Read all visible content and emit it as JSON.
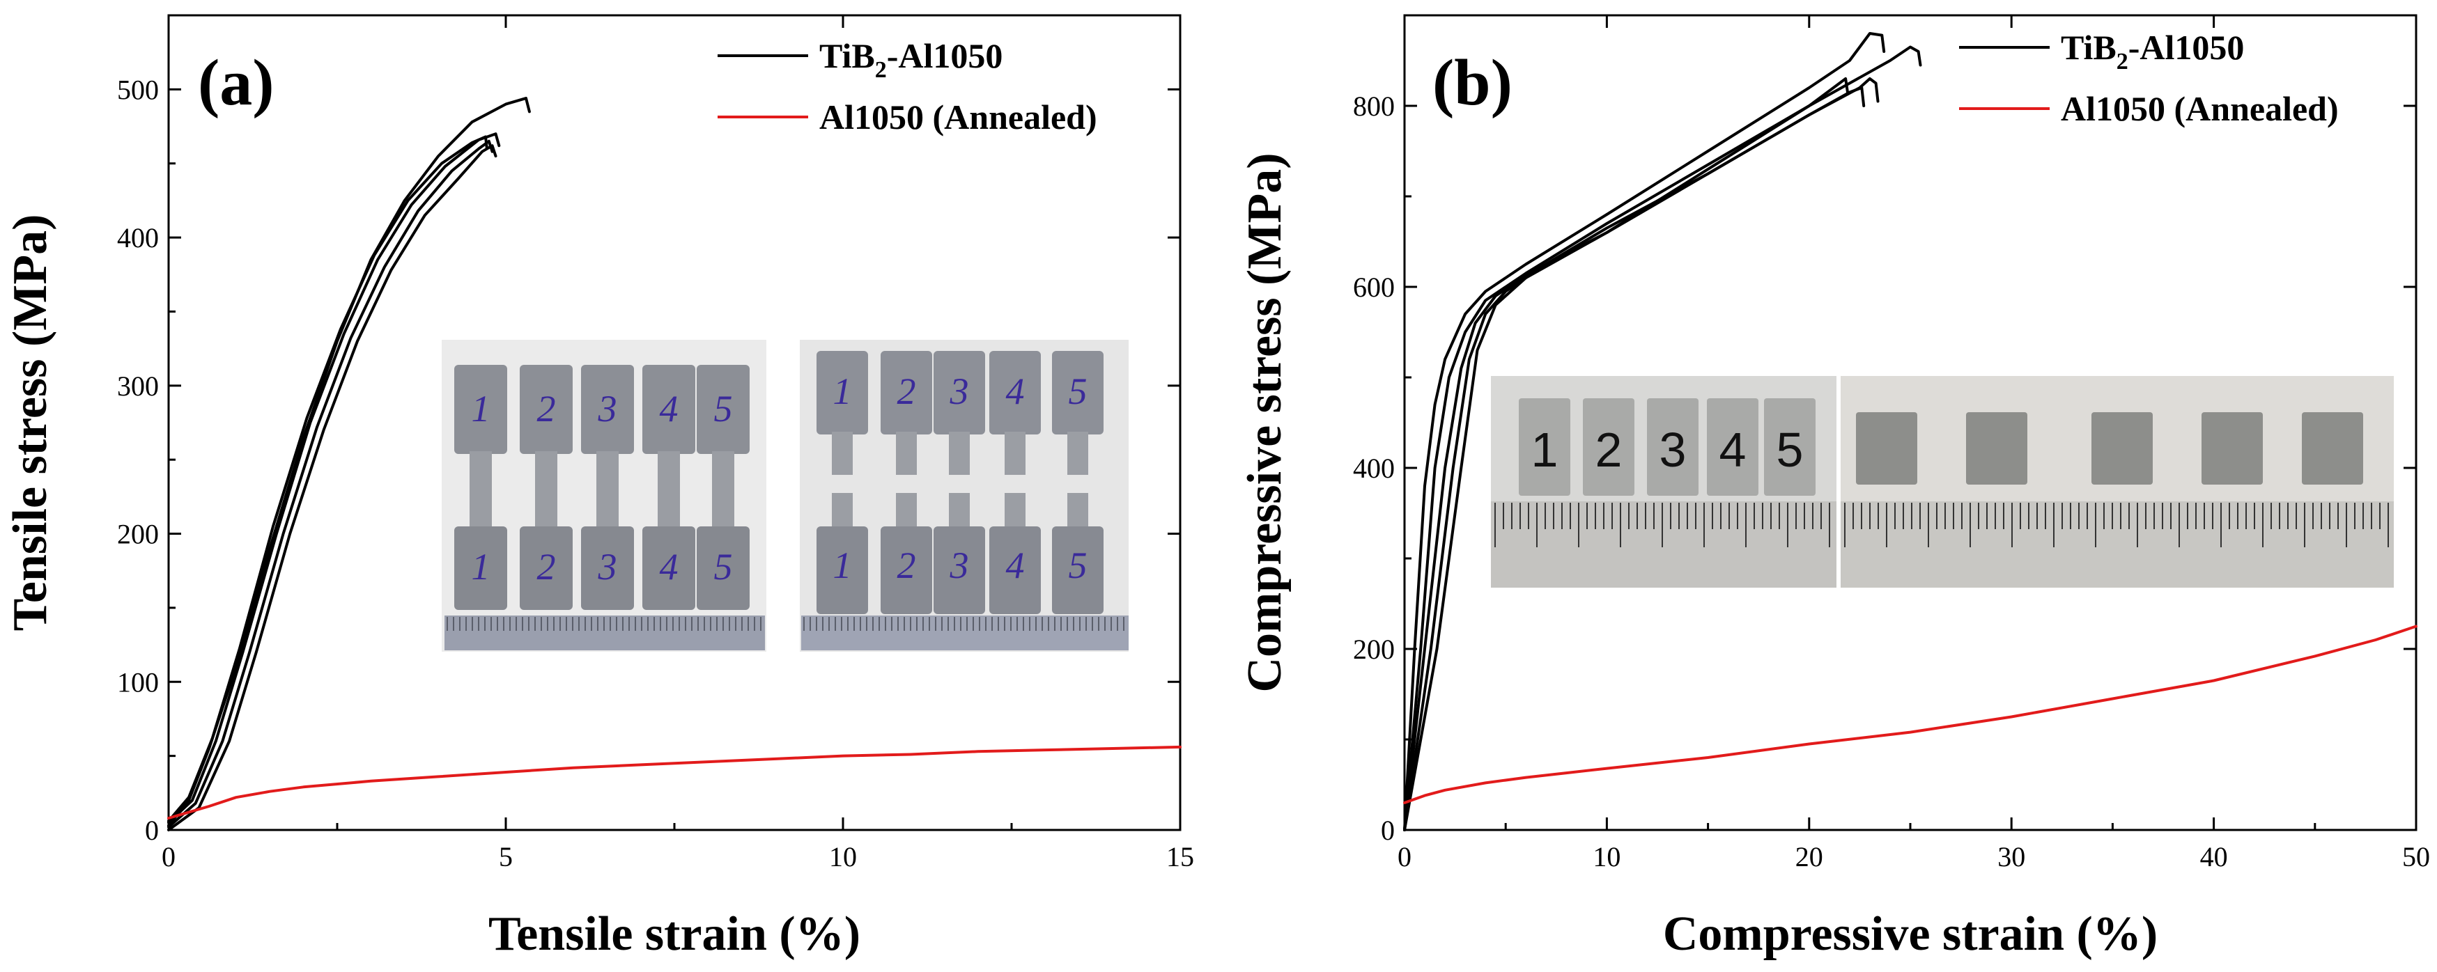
{
  "colors": {
    "tib2": "#000000",
    "annealed": "#e21b1b",
    "specimen_ink": "#3a2a9a"
  },
  "chart_data": [
    {
      "type": "line",
      "panel_label": "(a)",
      "xlabel": "Tensile strain (%)",
      "ylabel": "Tensile stress (MPa)",
      "xlim": [
        0,
        15
      ],
      "ylim": [
        0,
        550
      ],
      "xticks": [
        0,
        5,
        10,
        15
      ],
      "yticks": [
        0,
        100,
        200,
        300,
        400,
        500
      ],
      "xtick_labels": [
        "0",
        "5",
        "10",
        "15"
      ],
      "ytick_labels": [
        "0",
        "100",
        "200",
        "300",
        "400",
        "500"
      ],
      "legend": [
        {
          "label_main": "TiB",
          "label_sub": "2",
          "label_rest": "-Al1050",
          "color": "#000000"
        },
        {
          "label_main": "Al1050 (Annealed)",
          "label_sub": "",
          "label_rest": "",
          "color": "#e21b1b"
        }
      ],
      "inset": {
        "description_labels": [
          "1",
          "2",
          "3",
          "4",
          "5"
        ]
      },
      "series": [
        {
          "name": "TiB2-Al1050 specimen 1",
          "color": "#000000",
          "points": [
            [
              0,
              3
            ],
            [
              0.3,
              20
            ],
            [
              0.6,
              55
            ],
            [
              1.0,
              110
            ],
            [
              1.5,
              190
            ],
            [
              2.0,
              265
            ],
            [
              2.5,
              330
            ],
            [
              3.0,
              385
            ],
            [
              3.5,
              425
            ],
            [
              4.0,
              455
            ],
            [
              4.5,
              478
            ],
            [
              5.0,
              490
            ],
            [
              5.3,
              494
            ],
            [
              5.35,
              485
            ]
          ]
        },
        {
          "name": "TiB2-Al1050 specimen 2",
          "color": "#000000",
          "points": [
            [
              0,
              5
            ],
            [
              0.35,
              20
            ],
            [
              0.7,
              60
            ],
            [
              1.1,
              120
            ],
            [
              1.6,
              200
            ],
            [
              2.1,
              275
            ],
            [
              2.6,
              335
            ],
            [
              3.1,
              385
            ],
            [
              3.6,
              422
            ],
            [
              4.1,
              448
            ],
            [
              4.6,
              466
            ],
            [
              4.85,
              470
            ],
            [
              4.9,
              462
            ]
          ]
        },
        {
          "name": "TiB2-Al1050 specimen 3",
          "color": "#000000",
          "points": [
            [
              0,
              2
            ],
            [
              0.4,
              18
            ],
            [
              0.8,
              60
            ],
            [
              1.2,
              120
            ],
            [
              1.7,
              200
            ],
            [
              2.2,
              272
            ],
            [
              2.7,
              332
            ],
            [
              3.2,
              380
            ],
            [
              3.7,
              418
            ],
            [
              4.2,
              445
            ],
            [
              4.6,
              460
            ],
            [
              4.75,
              465
            ],
            [
              4.8,
              458
            ]
          ]
        },
        {
          "name": "TiB2-Al1050 specimen 4",
          "color": "#000000",
          "points": [
            [
              0,
              0
            ],
            [
              0.45,
              15
            ],
            [
              0.9,
              60
            ],
            [
              1.3,
              120
            ],
            [
              1.8,
              200
            ],
            [
              2.3,
              270
            ],
            [
              2.8,
              330
            ],
            [
              3.3,
              378
            ],
            [
              3.8,
              415
            ],
            [
              4.3,
              440
            ],
            [
              4.65,
              458
            ],
            [
              4.8,
              462
            ],
            [
              4.85,
              455
            ]
          ]
        },
        {
          "name": "TiB2-Al1050 specimen 5",
          "color": "#000000",
          "points": [
            [
              0,
              6
            ],
            [
              0.3,
              22
            ],
            [
              0.65,
              62
            ],
            [
              1.05,
              122
            ],
            [
              1.55,
              205
            ],
            [
              2.05,
              278
            ],
            [
              2.55,
              338
            ],
            [
              3.05,
              388
            ],
            [
              3.55,
              425
            ],
            [
              4.05,
              450
            ],
            [
              4.5,
              464
            ],
            [
              4.7,
              468
            ],
            [
              4.72,
              460
            ]
          ]
        },
        {
          "name": "Al1050 (Annealed)",
          "color": "#e21b1b",
          "points": [
            [
              0,
              8
            ],
            [
              0.3,
              12
            ],
            [
              0.6,
              16
            ],
            [
              1.0,
              22
            ],
            [
              1.5,
              26
            ],
            [
              2.0,
              29
            ],
            [
              3.0,
              33
            ],
            [
              4.0,
              36
            ],
            [
              5.0,
              39
            ],
            [
              6.0,
              42
            ],
            [
              7.0,
              44
            ],
            [
              8.0,
              46
            ],
            [
              9.0,
              48
            ],
            [
              10.0,
              50
            ],
            [
              11.0,
              51
            ],
            [
              12.0,
              53
            ],
            [
              13.0,
              54
            ],
            [
              14.0,
              55
            ],
            [
              15.0,
              56
            ]
          ]
        }
      ]
    },
    {
      "type": "line",
      "panel_label": "(b)",
      "xlabel": "Compressive strain (%)",
      "ylabel": "Compressive stress (MPa)",
      "xlim": [
        0,
        50
      ],
      "ylim": [
        0,
        900
      ],
      "xticks": [
        0,
        10,
        20,
        30,
        40,
        50
      ],
      "yticks": [
        0,
        200,
        400,
        600,
        800
      ],
      "xtick_labels": [
        "0",
        "10",
        "20",
        "30",
        "40",
        "50"
      ],
      "ytick_labels": [
        "0",
        "200",
        "400",
        "600",
        "800"
      ],
      "legend": [
        {
          "label_main": "TiB",
          "label_sub": "2",
          "label_rest": "-Al1050",
          "color": "#000000"
        },
        {
          "label_main": "Al1050 (Annealed)",
          "label_sub": "",
          "label_rest": "",
          "color": "#e21b1b"
        }
      ],
      "inset": {
        "description_labels": [
          "1",
          "2",
          "3",
          "4",
          "5"
        ]
      },
      "series": [
        {
          "name": "TiB2-Al1050 specimen 1",
          "color": "#000000",
          "points": [
            [
              0,
              0
            ],
            [
              0.5,
              200
            ],
            [
              1.0,
              380
            ],
            [
              1.5,
              470
            ],
            [
              2.0,
              520
            ],
            [
              3.0,
              570
            ],
            [
              4.0,
              595
            ],
            [
              6.0,
              625
            ],
            [
              10.0,
              680
            ],
            [
              15.0,
              750
            ],
            [
              20.0,
              820
            ],
            [
              22.0,
              850
            ],
            [
              23.0,
              880
            ],
            [
              23.6,
              878
            ],
            [
              23.7,
              860
            ]
          ]
        },
        {
          "name": "TiB2-Al1050 specimen 2",
          "color": "#000000",
          "points": [
            [
              0,
              0
            ],
            [
              0.8,
              200
            ],
            [
              1.5,
              400
            ],
            [
              2.2,
              500
            ],
            [
              3.0,
              550
            ],
            [
              4.0,
              585
            ],
            [
              6.0,
              615
            ],
            [
              10.0,
              670
            ],
            [
              15.0,
              735
            ],
            [
              20.0,
              800
            ],
            [
              24.0,
              850
            ],
            [
              25.0,
              865
            ],
            [
              25.4,
              860
            ],
            [
              25.5,
              845
            ]
          ]
        },
        {
          "name": "TiB2-Al1050 specimen 3",
          "color": "#000000",
          "points": [
            [
              0,
              0
            ],
            [
              1.0,
              200
            ],
            [
              2.0,
              400
            ],
            [
              2.8,
              510
            ],
            [
              3.5,
              560
            ],
            [
              4.5,
              590
            ],
            [
              6.0,
              612
            ],
            [
              10.0,
              665
            ],
            [
              15.0,
              725
            ],
            [
              20.0,
              790
            ],
            [
              22.5,
              820
            ],
            [
              23.0,
              830
            ],
            [
              23.3,
              825
            ],
            [
              23.4,
              805
            ]
          ]
        },
        {
          "name": "TiB2-Al1050 specimen 4",
          "color": "#000000",
          "points": [
            [
              0,
              0
            ],
            [
              1.3,
              200
            ],
            [
              2.4,
              400
            ],
            [
              3.2,
              520
            ],
            [
              4.0,
              570
            ],
            [
              5.0,
              595
            ],
            [
              7.0,
              625
            ],
            [
              10.0,
              660
            ],
            [
              15.0,
              725
            ],
            [
              20.0,
              790
            ],
            [
              22.0,
              815
            ],
            [
              22.6,
              820
            ],
            [
              22.7,
              800
            ]
          ]
        },
        {
          "name": "TiB2-Al1050 specimen 5",
          "color": "#000000",
          "points": [
            [
              0,
              0
            ],
            [
              1.6,
              200
            ],
            [
              2.8,
              400
            ],
            [
              3.6,
              530
            ],
            [
              4.5,
              580
            ],
            [
              6.0,
              610
            ],
            [
              10.0,
              660
            ],
            [
              15.0,
              730
            ],
            [
              20.0,
              800
            ],
            [
              21.5,
              825
            ],
            [
              21.8,
              830
            ],
            [
              21.9,
              815
            ]
          ]
        },
        {
          "name": "Al1050 (Annealed)",
          "color": "#e21b1b",
          "points": [
            [
              0,
              30
            ],
            [
              1,
              38
            ],
            [
              2,
              44
            ],
            [
              4,
              52
            ],
            [
              6,
              58
            ],
            [
              8,
              63
            ],
            [
              10,
              68
            ],
            [
              15,
              80
            ],
            [
              20,
              95
            ],
            [
              25,
              108
            ],
            [
              30,
              125
            ],
            [
              35,
              145
            ],
            [
              40,
              165
            ],
            [
              45,
              192
            ],
            [
              48,
              210
            ],
            [
              50,
              225
            ]
          ]
        }
      ]
    }
  ]
}
